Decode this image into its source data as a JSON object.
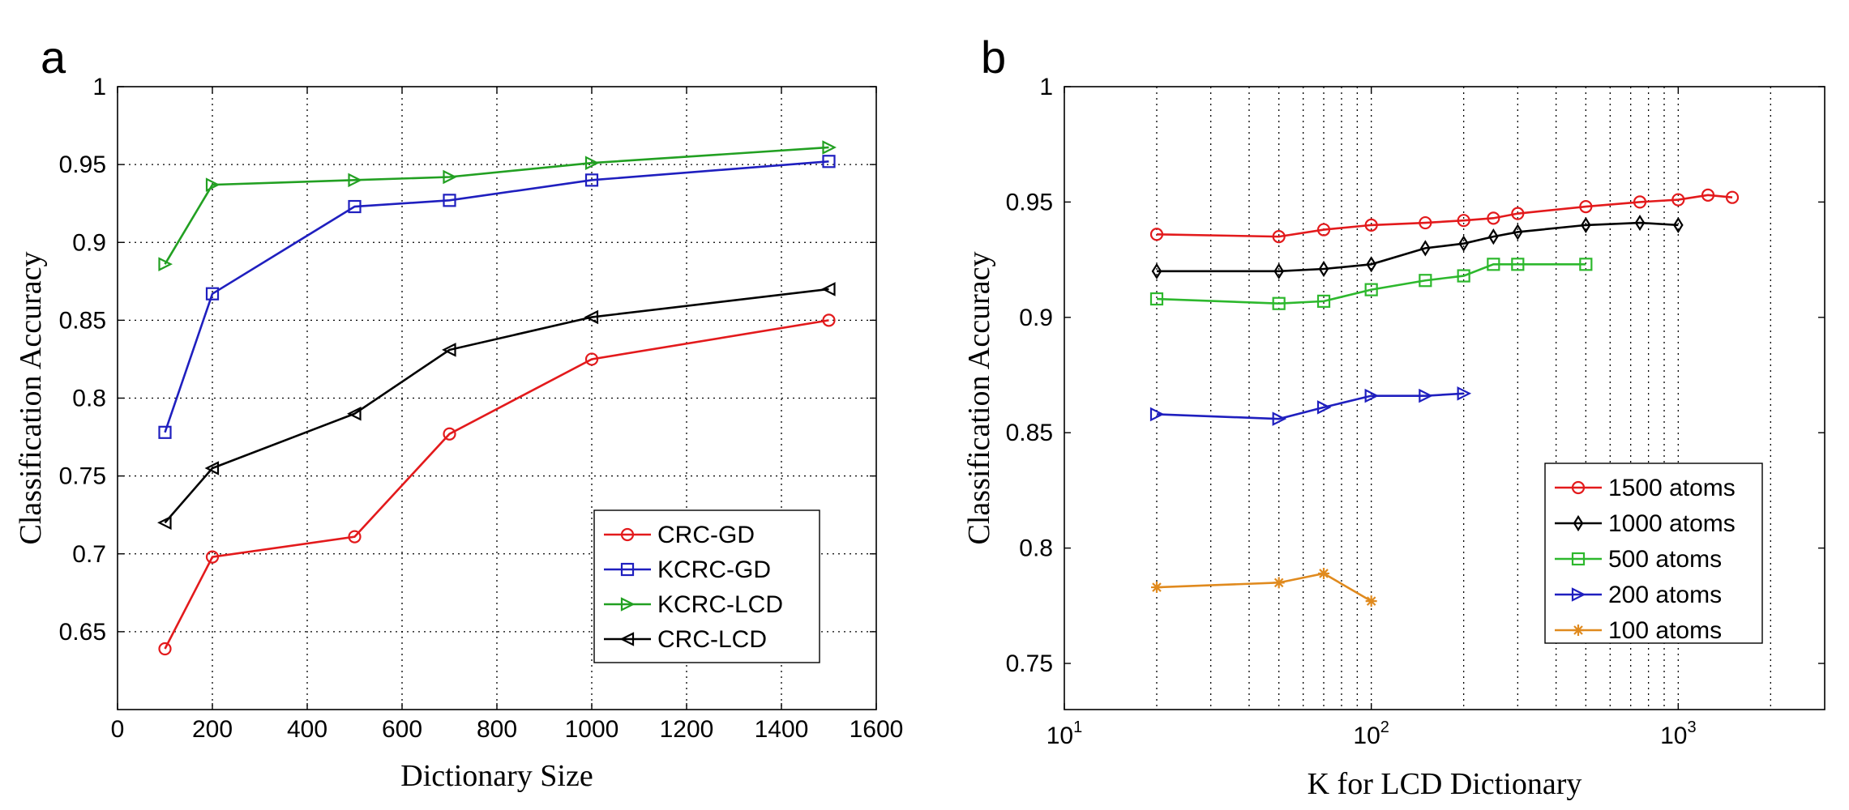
{
  "chart_data": [
    {
      "type": "line",
      "panel_label": "a",
      "xlabel": "Dictionary Size",
      "ylabel": "Classification Accuracy",
      "xscale": "linear",
      "xlim": [
        0,
        1600
      ],
      "ylim": [
        0.6,
        1.0
      ],
      "xticks": [
        0,
        200,
        400,
        600,
        800,
        1000,
        1200,
        1400,
        1600
      ],
      "xtick_labels": [
        "0",
        "200",
        "400",
        "600",
        "800",
        "1000",
        "1200",
        "1400",
        "1600"
      ],
      "yticks": [
        0.65,
        0.7,
        0.75,
        0.8,
        0.85,
        0.9,
        0.95,
        1.0
      ],
      "ytick_labels": [
        "0.65",
        "0.7",
        "0.75",
        "0.8",
        "0.85",
        "0.9",
        "0.95",
        "1"
      ],
      "grid": true,
      "legend_position": "bottom-right",
      "series": [
        {
          "name": "CRC-GD",
          "color": "#e31a1c",
          "marker": "circle",
          "x": [
            100,
            200,
            500,
            700,
            1000,
            1500
          ],
          "y": [
            0.639,
            0.698,
            0.711,
            0.777,
            0.825,
            0.85
          ]
        },
        {
          "name": "KCRC-GD",
          "color": "#1f1fbf",
          "marker": "square",
          "x": [
            100,
            200,
            500,
            700,
            1000,
            1500
          ],
          "y": [
            0.778,
            0.867,
            0.923,
            0.927,
            0.94,
            0.952
          ]
        },
        {
          "name": "KCRC-LCD",
          "color": "#22a022",
          "marker": "triangle-right",
          "x": [
            100,
            200,
            500,
            700,
            1000,
            1500
          ],
          "y": [
            0.886,
            0.937,
            0.94,
            0.942,
            0.951,
            0.961
          ]
        },
        {
          "name": "CRC-LCD",
          "color": "#000000",
          "marker": "triangle-left",
          "x": [
            100,
            200,
            500,
            700,
            1000,
            1500
          ],
          "y": [
            0.72,
            0.755,
            0.79,
            0.831,
            0.852,
            0.87
          ]
        }
      ]
    },
    {
      "type": "line",
      "panel_label": "b",
      "xlabel": "K for LCD Dictionary",
      "ylabel": "Classification Accuracy",
      "xscale": "log",
      "xlim": [
        10,
        3000
      ],
      "ylim": [
        0.73,
        1.0
      ],
      "xticks": [
        10,
        100,
        1000
      ],
      "xtick_labels": [
        {
          "base": "10",
          "exp": "1"
        },
        {
          "base": "10",
          "exp": "2"
        },
        {
          "base": "10",
          "exp": "3"
        }
      ],
      "yticks": [
        0.75,
        0.8,
        0.85,
        0.9,
        0.95,
        1.0
      ],
      "ytick_labels": [
        "0.75",
        "0.8",
        "0.85",
        "0.9",
        "0.95",
        "1"
      ],
      "grid": true,
      "legend_position": "bottom-right",
      "series": [
        {
          "name": "1500 atoms",
          "color": "#e31a1c",
          "marker": "circle",
          "x": [
            20,
            50,
            70,
            100,
            150,
            200,
            250,
            300,
            500,
            750,
            1000,
            1250,
            1500
          ],
          "y": [
            0.936,
            0.935,
            0.938,
            0.94,
            0.941,
            0.942,
            0.943,
            0.945,
            0.948,
            0.95,
            0.951,
            0.953,
            0.952
          ]
        },
        {
          "name": "1000 atoms",
          "color": "#000000",
          "marker": "diamond",
          "x": [
            20,
            50,
            70,
            100,
            150,
            200,
            250,
            300,
            500,
            750,
            1000
          ],
          "y": [
            0.92,
            0.92,
            0.921,
            0.923,
            0.93,
            0.932,
            0.935,
            0.937,
            0.94,
            0.941,
            0.94
          ]
        },
        {
          "name": "500 atoms",
          "color": "#2db82d",
          "marker": "square",
          "x": [
            20,
            50,
            70,
            100,
            150,
            200,
            250,
            300,
            500
          ],
          "y": [
            0.908,
            0.906,
            0.907,
            0.912,
            0.916,
            0.918,
            0.923,
            0.923,
            0.923
          ]
        },
        {
          "name": "200 atoms",
          "color": "#1f1fbf",
          "marker": "triangle-right",
          "x": [
            20,
            50,
            70,
            100,
            150,
            200
          ],
          "y": [
            0.858,
            0.856,
            0.861,
            0.866,
            0.866,
            0.867
          ]
        },
        {
          "name": "100 atoms",
          "color": "#e08a1e",
          "marker": "asterisk",
          "x": [
            20,
            50,
            70,
            100
          ],
          "y": [
            0.783,
            0.785,
            0.789,
            0.777
          ]
        }
      ]
    }
  ]
}
